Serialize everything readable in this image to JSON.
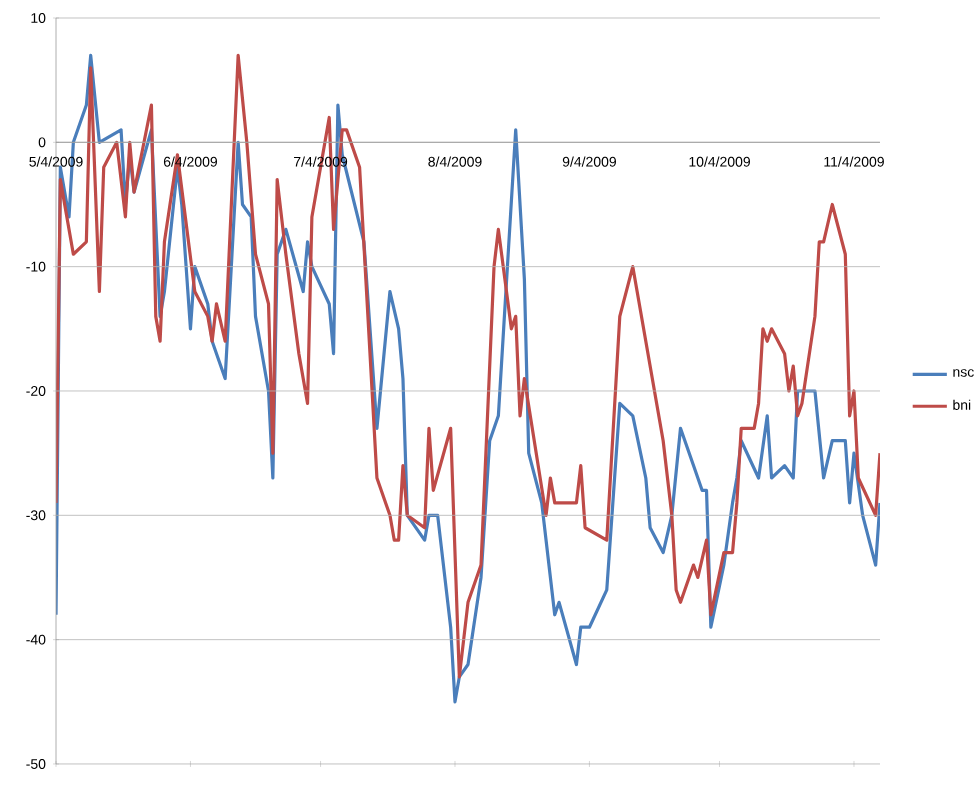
{
  "chart_data": {
    "type": "line",
    "xlim": [
      "2009-05-04",
      "2009-11-10"
    ],
    "xticks": [
      {
        "value": "2009-05-04",
        "label": "5/4/2009"
      },
      {
        "value": "2009-06-04",
        "label": "6/4/2009"
      },
      {
        "value": "2009-07-04",
        "label": "7/4/2009"
      },
      {
        "value": "2009-08-04",
        "label": "8/4/2009"
      },
      {
        "value": "2009-09-04",
        "label": "9/4/2009"
      },
      {
        "value": "2009-10-04",
        "label": "10/4/2009"
      },
      {
        "value": "2009-11-04",
        "label": "11/4/2009"
      }
    ],
    "ylim": [
      -50,
      10
    ],
    "yticks": [
      -50,
      -40,
      -30,
      -20,
      -10,
      0,
      10
    ],
    "grid": "y",
    "legend": "right",
    "marker": "none",
    "line_style": "solid",
    "series": [
      {
        "name": "nsc",
        "color": "#4a7ebb",
        "x": [
          "2009-05-04",
          "2009-05-05",
          "2009-05-07",
          "2009-05-08",
          "2009-05-11",
          "2009-05-12",
          "2009-05-14",
          "2009-05-19",
          "2009-05-20",
          "2009-05-21",
          "2009-05-22",
          "2009-05-26",
          "2009-05-28",
          "2009-05-29",
          "2009-06-01",
          "2009-06-02",
          "2009-06-04",
          "2009-06-05",
          "2009-06-08",
          "2009-06-09",
          "2009-06-12",
          "2009-06-15",
          "2009-06-16",
          "2009-06-18",
          "2009-06-19",
          "2009-06-22",
          "2009-06-23",
          "2009-06-24",
          "2009-06-26",
          "2009-06-30",
          "2009-07-01",
          "2009-07-02",
          "2009-07-06",
          "2009-07-07",
          "2009-07-08",
          "2009-07-09",
          "2009-07-14",
          "2009-07-17",
          "2009-07-20",
          "2009-07-22",
          "2009-07-23",
          "2009-07-24",
          "2009-07-28",
          "2009-07-29",
          "2009-07-31",
          "2009-08-03",
          "2009-08-04",
          "2009-08-05",
          "2009-08-07",
          "2009-08-10",
          "2009-08-12",
          "2009-08-14",
          "2009-08-18",
          "2009-08-20",
          "2009-08-21",
          "2009-08-24",
          "2009-08-27",
          "2009-08-28",
          "2009-09-01",
          "2009-09-02",
          "2009-09-04",
          "2009-09-08",
          "2009-09-11",
          "2009-09-14",
          "2009-09-17",
          "2009-09-18",
          "2009-09-21",
          "2009-09-23",
          "2009-09-25",
          "2009-09-28",
          "2009-09-30",
          "2009-10-01",
          "2009-10-02",
          "2009-10-05",
          "2009-10-07",
          "2009-10-08",
          "2009-10-09",
          "2009-10-13",
          "2009-10-15",
          "2009-10-16",
          "2009-10-19",
          "2009-10-21",
          "2009-10-22",
          "2009-10-26",
          "2009-10-28",
          "2009-10-30",
          "2009-11-02",
          "2009-11-03",
          "2009-11-04",
          "2009-11-06",
          "2009-11-09",
          "2009-11-10"
        ],
        "values": [
          -38,
          -2,
          -6,
          0,
          3,
          7,
          0,
          1,
          -5,
          -1,
          -4,
          1,
          -14,
          -12,
          -2,
          -5,
          -15,
          -10,
          -13,
          -16,
          -19,
          0,
          -5,
          -6,
          -14,
          -20,
          -27,
          -9,
          -7,
          -12,
          -8,
          -10,
          -13,
          -17,
          3,
          -1,
          -8,
          -23,
          -12,
          -15,
          -19,
          -30,
          -32,
          -30,
          -30,
          -39,
          -45,
          -43,
          -42,
          -35,
          -24,
          -22,
          1,
          -11,
          -25,
          -29,
          -38,
          -37,
          -42,
          -39,
          -39,
          -36,
          -21,
          -22,
          -27,
          -31,
          -33,
          -30,
          -23,
          -26,
          -28,
          -28,
          -39,
          -34,
          -29,
          -27,
          -24,
          -27,
          -22,
          -27,
          -26,
          -27,
          -20,
          -20,
          -27,
          -24,
          -24,
          -29,
          -25,
          -30,
          -34,
          -29
        ]
      },
      {
        "name": "bni",
        "color": "#be4b48",
        "x": [
          "2009-05-04",
          "2009-05-05",
          "2009-05-08",
          "2009-05-11",
          "2009-05-12",
          "2009-05-14",
          "2009-05-15",
          "2009-05-18",
          "2009-05-20",
          "2009-05-21",
          "2009-05-22",
          "2009-05-26",
          "2009-05-27",
          "2009-05-28",
          "2009-05-29",
          "2009-06-01",
          "2009-06-05",
          "2009-06-08",
          "2009-06-09",
          "2009-06-10",
          "2009-06-12",
          "2009-06-15",
          "2009-06-17",
          "2009-06-19",
          "2009-06-22",
          "2009-06-23",
          "2009-06-24",
          "2009-06-26",
          "2009-06-29",
          "2009-07-01",
          "2009-07-02",
          "2009-07-06",
          "2009-07-07",
          "2009-07-09",
          "2009-07-10",
          "2009-07-13",
          "2009-07-17",
          "2009-07-20",
          "2009-07-21",
          "2009-07-22",
          "2009-07-23",
          "2009-07-24",
          "2009-07-28",
          "2009-07-29",
          "2009-07-30",
          "2009-08-03",
          "2009-08-05",
          "2009-08-07",
          "2009-08-10",
          "2009-08-13",
          "2009-08-14",
          "2009-08-17",
          "2009-08-18",
          "2009-08-19",
          "2009-08-20",
          "2009-08-25",
          "2009-08-26",
          "2009-08-27",
          "2009-09-01",
          "2009-09-02",
          "2009-09-03",
          "2009-09-08",
          "2009-09-11",
          "2009-09-14",
          "2009-09-15",
          "2009-09-21",
          "2009-09-23",
          "2009-09-24",
          "2009-09-25",
          "2009-09-28",
          "2009-09-29",
          "2009-10-01",
          "2009-10-02",
          "2009-10-05",
          "2009-10-07",
          "2009-10-08",
          "2009-10-09",
          "2009-10-12",
          "2009-10-13",
          "2009-10-14",
          "2009-10-15",
          "2009-10-16",
          "2009-10-19",
          "2009-10-20",
          "2009-10-21",
          "2009-10-22",
          "2009-10-23",
          "2009-10-26",
          "2009-10-27",
          "2009-10-28",
          "2009-10-30",
          "2009-11-02",
          "2009-11-03",
          "2009-11-04",
          "2009-11-05",
          "2009-11-09",
          "2009-11-10"
        ],
        "values": [
          -29,
          -3,
          -9,
          -8,
          6,
          -12,
          -2,
          0,
          -6,
          0,
          -4,
          3,
          -14,
          -16,
          -8,
          -1,
          -12,
          -14,
          -16,
          -13,
          -16,
          7,
          0,
          -9,
          -13,
          -25,
          -3,
          -9,
          -17,
          -21,
          -6,
          2,
          -7,
          1,
          1,
          -2,
          -27,
          -30,
          -32,
          -32,
          -26,
          -30,
          -31,
          -23,
          -28,
          -23,
          -43,
          -37,
          -34,
          -10,
          -7,
          -15,
          -14,
          -22,
          -19,
          -30,
          -27,
          -29,
          -29,
          -26,
          -31,
          -32,
          -14,
          -10,
          -12,
          -24,
          -30,
          -36,
          -37,
          -34,
          -35,
          -32,
          -38,
          -33,
          -33,
          -29,
          -23,
          -23,
          -21,
          -15,
          -16,
          -15,
          -17,
          -20,
          -18,
          -22,
          -21,
          -14,
          -8,
          -8,
          -5,
          -9,
          -22,
          -20,
          -27,
          -30,
          -25
        ]
      }
    ]
  }
}
